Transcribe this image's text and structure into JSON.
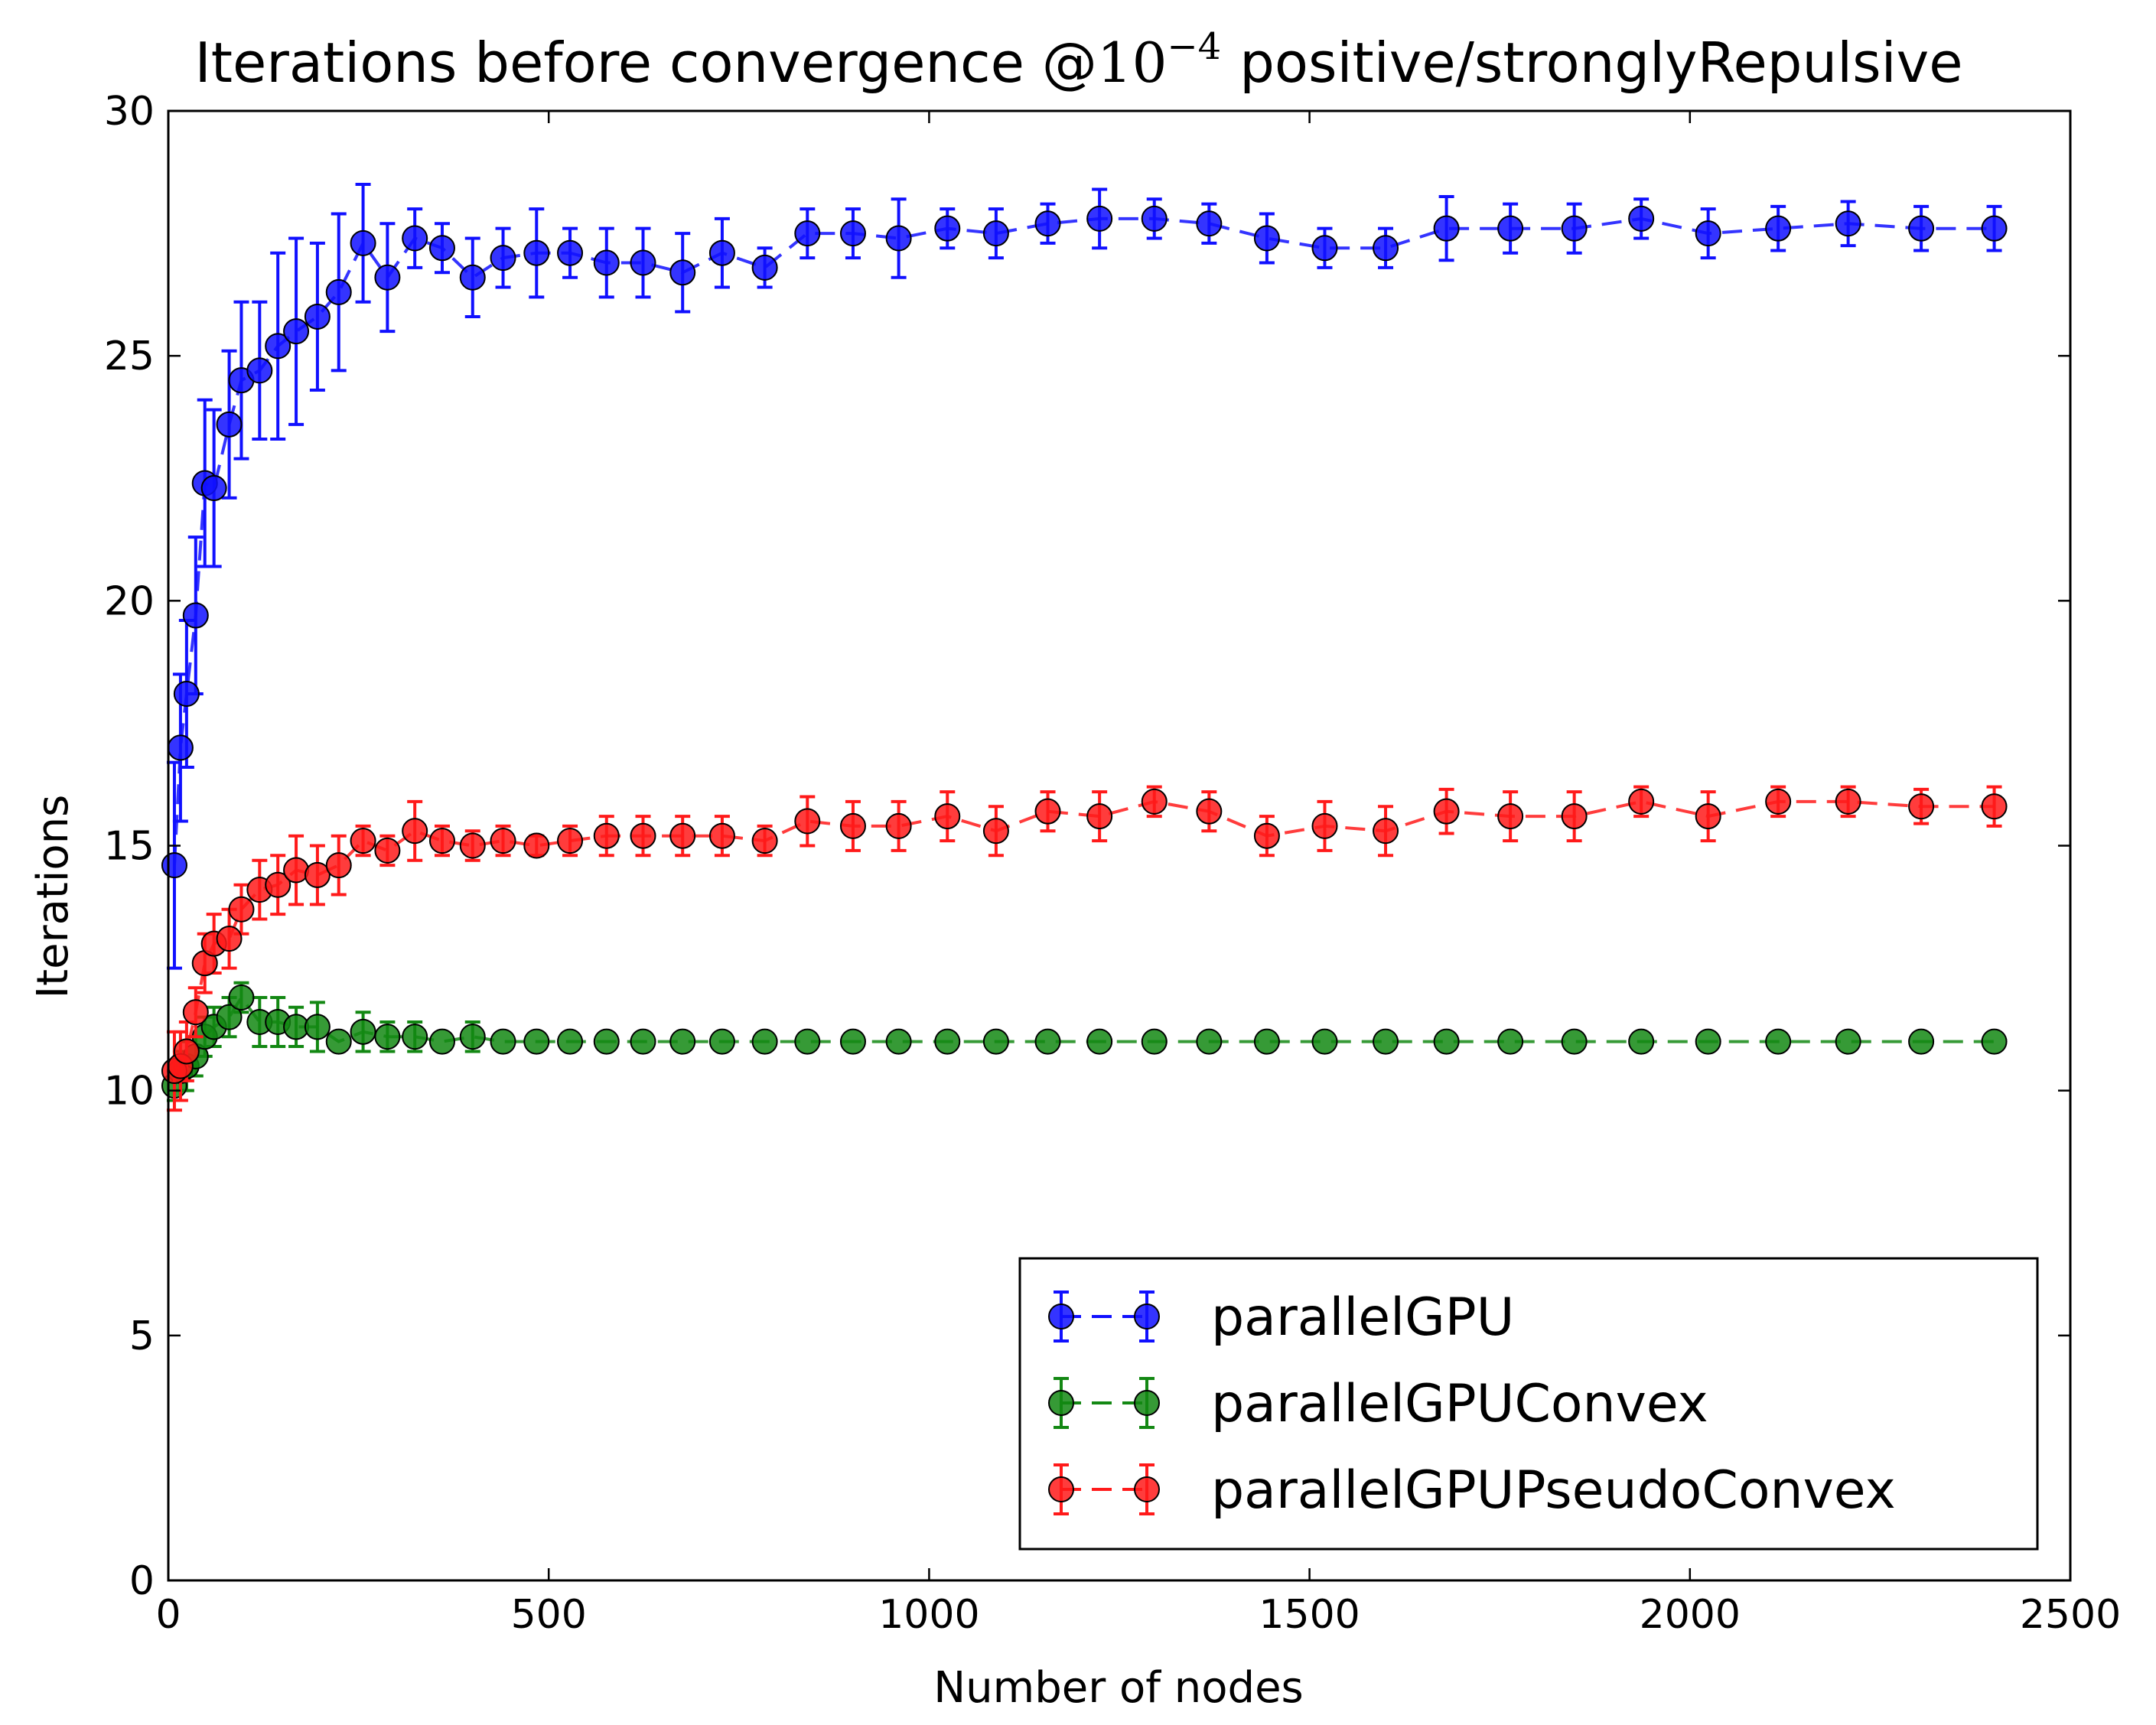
{
  "chart_data": {
    "type": "line",
    "title_prefix": "Iterations before convergence @",
    "title_math_base": "10",
    "title_math_exp": "−4",
    "title_suffix": "positive/stronglyRepulsive",
    "xlabel": "Number of nodes",
    "ylabel": "Iterations",
    "xlim": [
      0,
      2500
    ],
    "ylim": [
      0,
      30
    ],
    "xticks": [
      0,
      500,
      1000,
      1500,
      2000,
      2500
    ],
    "yticks": [
      0,
      5,
      10,
      15,
      20,
      25,
      30
    ],
    "grid": false,
    "legend_position": "lower-right",
    "series": [
      {
        "name": "parallelGPU",
        "color": "#1010ff",
        "x": [
          8,
          16,
          24,
          36,
          48,
          60,
          80,
          96,
          120,
          144,
          168,
          196,
          224,
          256,
          288,
          324,
          360,
          400,
          440,
          484,
          528,
          576,
          624,
          676,
          728,
          784,
          840,
          900,
          960,
          1024,
          1088,
          1156,
          1224,
          1296,
          1368,
          1444,
          1520,
          1600,
          1680,
          1764,
          1848,
          1936,
          2024,
          2116,
          2208,
          2304,
          2400
        ],
        "y": [
          14.6,
          17.0,
          18.1,
          19.7,
          22.4,
          22.3,
          23.6,
          24.5,
          24.7,
          25.2,
          25.5,
          25.8,
          26.3,
          27.3,
          26.6,
          27.4,
          27.2,
          26.6,
          27.0,
          27.1,
          27.1,
          26.9,
          26.9,
          26.7,
          27.1,
          26.8,
          27.5,
          27.5,
          27.4,
          27.6,
          27.5,
          27.7,
          27.8,
          27.8,
          27.7,
          27.4,
          27.2,
          27.2,
          27.6,
          27.6,
          27.6,
          27.8,
          27.5,
          27.6,
          27.7,
          27.6,
          27.6
        ],
        "err": [
          2.1,
          1.5,
          1.5,
          1.6,
          1.7,
          1.6,
          1.5,
          1.6,
          1.4,
          1.9,
          1.9,
          1.5,
          1.6,
          1.2,
          1.1,
          0.6,
          0.5,
          0.8,
          0.6,
          0.9,
          0.5,
          0.7,
          0.7,
          0.8,
          0.7,
          0.4,
          0.5,
          0.5,
          0.8,
          0.4,
          0.5,
          0.4,
          0.6,
          0.4,
          0.4,
          0.5,
          0.4,
          0.4,
          0.65,
          0.5,
          0.5,
          0.4,
          0.5,
          0.45,
          0.45,
          0.45,
          0.45
        ]
      },
      {
        "name": "parallelGPUConvex",
        "color": "#138813",
        "x": [
          8,
          16,
          24,
          36,
          48,
          60,
          80,
          96,
          120,
          144,
          168,
          196,
          224,
          256,
          288,
          324,
          360,
          400,
          440,
          484,
          528,
          576,
          624,
          676,
          728,
          784,
          840,
          900,
          960,
          1024,
          1088,
          1156,
          1224,
          1296,
          1368,
          1444,
          1520,
          1600,
          1680,
          1764,
          1848,
          1936,
          2024,
          2116,
          2208,
          2304,
          2400
        ],
        "y": [
          10.1,
          10.4,
          10.5,
          10.7,
          11.1,
          11.3,
          11.5,
          11.9,
          11.4,
          11.4,
          11.3,
          11.3,
          11.0,
          11.2,
          11.1,
          11.1,
          11.0,
          11.1,
          11.0,
          11.0,
          11.0,
          11.0,
          11.0,
          11.0,
          11.0,
          11.0,
          11.0,
          11.0,
          11.0,
          11.0,
          11.0,
          11.0,
          11.0,
          11.0,
          11.0,
          11.0,
          11.0,
          11.0,
          11.0,
          11.0,
          11.0,
          11.0,
          11.0,
          11.0,
          11.0,
          11.0,
          11.0
        ],
        "err": [
          0.3,
          0.4,
          0.5,
          0.4,
          0.4,
          0.4,
          0.4,
          0.3,
          0.5,
          0.5,
          0.4,
          0.5,
          0.0,
          0.4,
          0.3,
          0.3,
          0.0,
          0.3,
          0.0,
          0.0,
          0.0,
          0.0,
          0.0,
          0.0,
          0.0,
          0.0,
          0.0,
          0.0,
          0.0,
          0.0,
          0.0,
          0.0,
          0.0,
          0.0,
          0.0,
          0.0,
          0.0,
          0.0,
          0.0,
          0.0,
          0.0,
          0.0,
          0.0,
          0.0,
          0.0,
          0.0,
          0.0
        ]
      },
      {
        "name": "parallelGPUPseudoConvex",
        "color": "#ff1a1a",
        "x": [
          8,
          16,
          24,
          36,
          48,
          60,
          80,
          96,
          120,
          144,
          168,
          196,
          224,
          256,
          288,
          324,
          360,
          400,
          440,
          484,
          528,
          576,
          624,
          676,
          728,
          784,
          840,
          900,
          960,
          1024,
          1088,
          1156,
          1224,
          1296,
          1368,
          1444,
          1520,
          1600,
          1680,
          1764,
          1848,
          1936,
          2024,
          2116,
          2208,
          2304,
          2400
        ],
        "y": [
          10.4,
          10.5,
          10.8,
          11.6,
          12.6,
          13.0,
          13.1,
          13.7,
          14.1,
          14.2,
          14.5,
          14.4,
          14.6,
          15.1,
          14.9,
          15.3,
          15.1,
          15.0,
          15.1,
          15.0,
          15.1,
          15.2,
          15.2,
          15.2,
          15.2,
          15.1,
          15.5,
          15.4,
          15.4,
          15.6,
          15.3,
          15.7,
          15.6,
          15.9,
          15.7,
          15.2,
          15.4,
          15.3,
          15.7,
          15.6,
          15.6,
          15.9,
          15.6,
          15.9,
          15.9,
          15.8,
          15.8
        ],
        "err": [
          0.8,
          0.7,
          0.6,
          0.5,
          0.6,
          0.6,
          0.6,
          0.5,
          0.6,
          0.6,
          0.7,
          0.6,
          0.6,
          0.3,
          0.3,
          0.6,
          0.3,
          0.3,
          0.3,
          0.2,
          0.3,
          0.4,
          0.4,
          0.4,
          0.4,
          0.3,
          0.5,
          0.5,
          0.5,
          0.5,
          0.5,
          0.4,
          0.5,
          0.3,
          0.4,
          0.4,
          0.5,
          0.5,
          0.45,
          0.5,
          0.5,
          0.3,
          0.5,
          0.3,
          0.3,
          0.35,
          0.4
        ]
      }
    ]
  }
}
